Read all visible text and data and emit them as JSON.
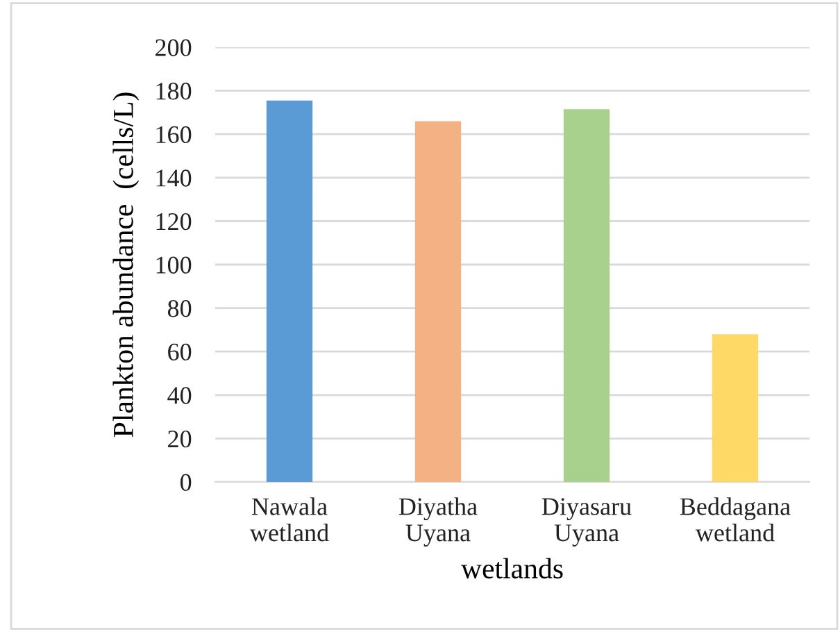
{
  "chart_data": {
    "type": "bar",
    "xlabel": "wetlands",
    "ylabel": "Plankton abundance  (cells/L)",
    "categories": [
      "Nawala\nwetland",
      "Diyatha\nUyana",
      "Diyasaru\nUyana",
      "Beddagana\nwetland"
    ],
    "values": [
      175.5,
      166,
      171.5,
      68
    ],
    "colors": [
      "#5b9bd5",
      "#f4b183",
      "#a9d18e",
      "#ffd966"
    ],
    "ylim": [
      0,
      200
    ],
    "yticks": [
      0,
      20,
      40,
      60,
      80,
      100,
      120,
      140,
      160,
      180,
      200
    ],
    "grid": "y"
  }
}
